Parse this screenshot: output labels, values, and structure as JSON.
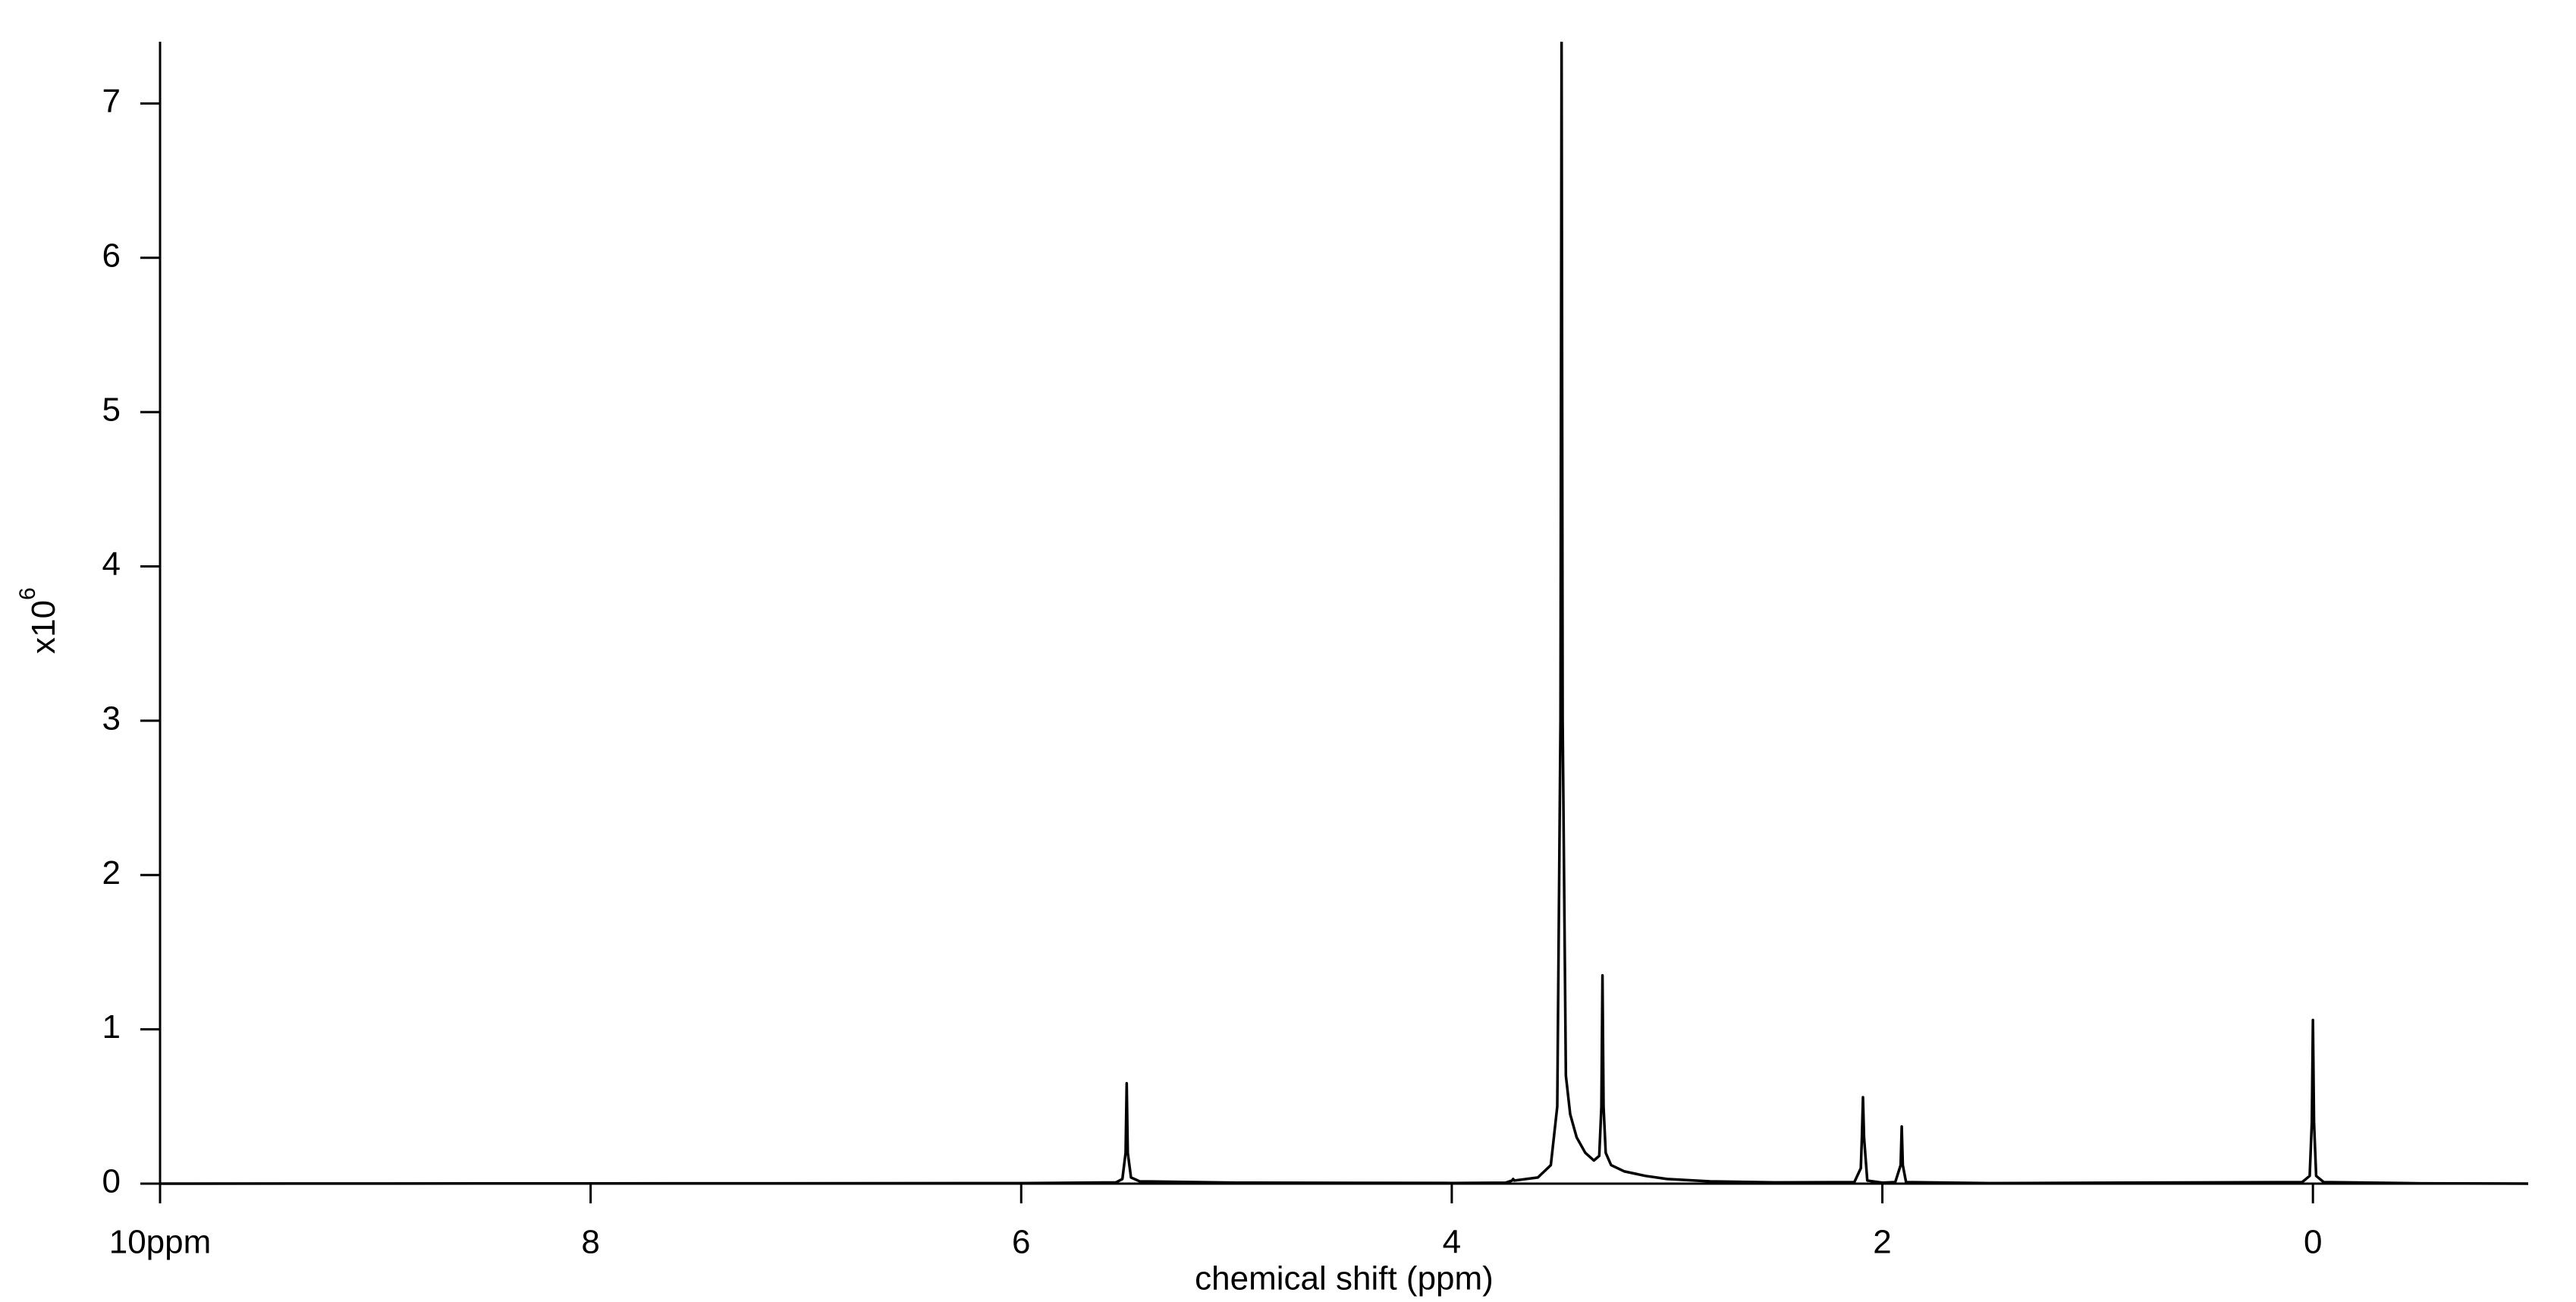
{
  "chart_data": {
    "type": "line",
    "xlabel": "chemical shift (ppm)",
    "ylabel": "x10",
    "ylabel_exponent": "6",
    "x": [
      10,
      6,
      5.56,
      5.53,
      5.515,
      5.51,
      5.505,
      5.49,
      5.45,
      5.0,
      4.0,
      3.75,
      3.72,
      3.715,
      3.71,
      3.6,
      3.54,
      3.51,
      3.495,
      3.49,
      3.485,
      3.47,
      3.45,
      3.42,
      3.38,
      3.34,
      3.315,
      3.305,
      3.3,
      3.295,
      3.285,
      3.26,
      3.2,
      3.1,
      3.0,
      2.8,
      2.5,
      2.13,
      2.1,
      2.095,
      2.09,
      2.085,
      2.07,
      2.0,
      1.94,
      1.915,
      1.91,
      1.905,
      1.89,
      1.5,
      0.05,
      0.015,
      0.005,
      0,
      -0.005,
      -0.015,
      -0.05,
      -0.5,
      -1
    ],
    "values": [
      0,
      0.003,
      0.008,
      0.03,
      0.2,
      0.65,
      0.2,
      0.04,
      0.015,
      0.006,
      0.004,
      0.006,
      0.02,
      0.03,
      0.02,
      0.04,
      0.12,
      0.5,
      3,
      7.4,
      3,
      0.7,
      0.45,
      0.3,
      0.2,
      0.15,
      0.18,
      0.5,
      1.35,
      0.5,
      0.2,
      0.12,
      0.08,
      0.05,
      0.03,
      0.015,
      0.008,
      0.01,
      0.1,
      0.3,
      0.56,
      0.3,
      0.02,
      0.006,
      0.01,
      0.12,
      0.37,
      0.12,
      0.01,
      0.003,
      0.01,
      0.05,
      0.4,
      1.06,
      0.4,
      0.05,
      0.01,
      0.002,
      0
    ],
    "color": "#000000",
    "xlim": [
      10,
      -1
    ],
    "ylim": [
      0,
      7.4
    ],
    "xticks": [
      {
        "value": 10,
        "label": "10ppm"
      },
      8,
      6,
      4,
      2,
      0
    ],
    "yticks": [
      0,
      1,
      2,
      3,
      4,
      5,
      6,
      7
    ],
    "grid": false
  }
}
